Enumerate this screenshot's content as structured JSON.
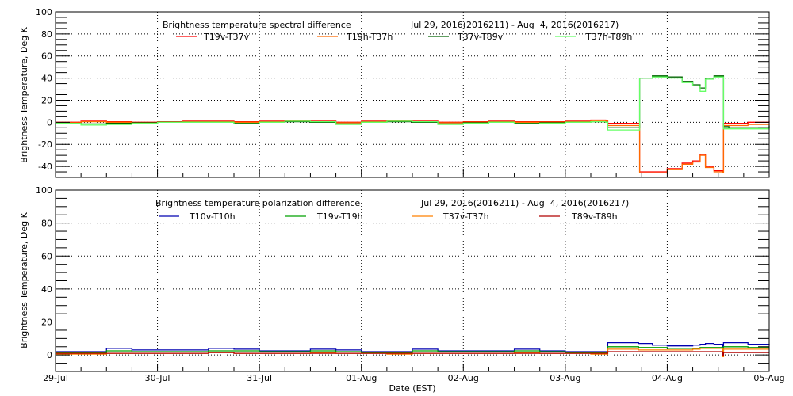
{
  "xlabel": "Date (EST)",
  "ylabel": "Brightness Temperature, Deg K",
  "xticks": [
    "29-Jul",
    "30-Jul",
    "31-Jul",
    "01-Aug",
    "02-Aug",
    "03-Aug",
    "04-Aug",
    "05-Aug"
  ],
  "chart_data": [
    {
      "type": "line",
      "title": "Brightness temperature spectral difference",
      "subtitle": "Jul 29, 2016(2016211) - Aug  4, 2016(2016217)",
      "ylabel": "Brightness Temperature, Deg K",
      "xlabel": "",
      "xlim": [
        "2016-07-29 00:00",
        "2016-08-05 00:00"
      ],
      "ylim": [
        -50,
        100
      ],
      "yticks": [
        -40,
        -20,
        0,
        20,
        40,
        60,
        80,
        100
      ],
      "grid": true,
      "legend": "top",
      "x": [
        "2016-07-29 00:00",
        "2016-07-29 06:00",
        "2016-07-29 12:00",
        "2016-07-29 18:00",
        "2016-07-30 00:00",
        "2016-07-30 06:00",
        "2016-07-30 12:00",
        "2016-07-30 18:00",
        "2016-07-31 00:00",
        "2016-07-31 06:00",
        "2016-07-31 12:00",
        "2016-07-31 18:00",
        "2016-08-01 00:00",
        "2016-08-01 06:00",
        "2016-08-01 12:00",
        "2016-08-01 18:00",
        "2016-08-02 00:00",
        "2016-08-02 06:00",
        "2016-08-02 12:00",
        "2016-08-02 18:00",
        "2016-08-03 00:00",
        "2016-08-03 06:00",
        "2016-08-03 09:30",
        "2016-08-03 10:00",
        "2016-08-03 14:30",
        "2016-08-03 17:15",
        "2016-08-03 17:30",
        "2016-08-03 20:30",
        "2016-08-04 00:00",
        "2016-08-04 03:30",
        "2016-08-04 06:00",
        "2016-08-04 07:45",
        "2016-08-04 09:00",
        "2016-08-04 11:00",
        "2016-08-04 13:00",
        "2016-08-04 13:15",
        "2016-08-04 14:30",
        "2016-08-04 19:00",
        "2016-08-05 00:00"
      ],
      "series": [
        {
          "name": "T19v-T37v",
          "color": "#ff0000",
          "values": [
            0,
            1,
            0.5,
            0,
            0.5,
            1,
            1,
            0.5,
            1,
            1.5,
            1,
            0,
            1,
            1.5,
            1,
            0,
            0.5,
            1,
            0.5,
            0.5,
            1,
            2,
            1.5,
            -1,
            -1,
            -1,
            -45,
            -45,
            -42,
            -37,
            -35,
            -29,
            -40,
            -44,
            -45,
            -1,
            -1,
            0,
            1
          ]
        },
        {
          "name": "T19h-T37h",
          "color": "#ff6a00",
          "values": [
            -0.5,
            0.5,
            0,
            -0.5,
            0,
            0.5,
            0.5,
            0,
            0.5,
            1,
            0.5,
            -0.5,
            0.5,
            1,
            0.5,
            -0.5,
            0,
            0.5,
            0,
            0,
            0.5,
            1.5,
            1,
            -3,
            -3,
            -3,
            -46,
            -46,
            -43,
            -38,
            -36,
            -30,
            -41,
            -45,
            -46,
            -3,
            -3,
            -2,
            -1
          ]
        },
        {
          "name": "T37v-T89v",
          "color": "#006400",
          "values": [
            -1,
            -1.5,
            -1,
            -0.5,
            0,
            0,
            0,
            -1,
            0,
            0.5,
            0,
            -1.5,
            0,
            0.5,
            0,
            -1.5,
            -0.5,
            0,
            -1,
            -0.5,
            0,
            0.5,
            0,
            -5,
            -5,
            -5,
            40,
            42,
            41,
            37,
            34,
            31,
            40,
            42,
            42,
            -4,
            -5,
            -5,
            -3
          ]
        },
        {
          "name": "T37h-T89h",
          "color": "#66ff66",
          "values": [
            -1,
            -2.5,
            -2,
            -1,
            0,
            0,
            0,
            -1.5,
            0,
            1,
            0.5,
            -2,
            0,
            1,
            0.5,
            -2,
            -1,
            0,
            -1.5,
            -1,
            0,
            0.5,
            0,
            -7,
            -7,
            -7,
            40,
            41,
            40,
            36,
            33,
            28,
            39,
            41,
            41,
            -6,
            -6,
            -6,
            -4
          ]
        }
      ]
    },
    {
      "type": "line",
      "title": "Brightness temperature polarization difference",
      "subtitle": "Jul 29, 2016(2016211) - Aug  4, 2016(2016217)",
      "ylabel": "Brightness Temperature, Deg K",
      "xlabel": "Date (EST)",
      "xlim": [
        "2016-07-29 00:00",
        "2016-08-05 00:00"
      ],
      "ylim": [
        -10,
        100
      ],
      "yticks": [
        0,
        20,
        40,
        60,
        80,
        100
      ],
      "grid": true,
      "legend": "top",
      "x": [
        "2016-07-29 00:00",
        "2016-07-29 06:00",
        "2016-07-29 12:00",
        "2016-07-29 18:00",
        "2016-07-30 00:00",
        "2016-07-30 06:00",
        "2016-07-30 12:00",
        "2016-07-30 18:00",
        "2016-07-31 00:00",
        "2016-07-31 06:00",
        "2016-07-31 12:00",
        "2016-07-31 18:00",
        "2016-08-01 00:00",
        "2016-08-01 06:00",
        "2016-08-01 12:00",
        "2016-08-01 18:00",
        "2016-08-02 00:00",
        "2016-08-02 06:00",
        "2016-08-02 12:00",
        "2016-08-02 18:00",
        "2016-08-03 00:00",
        "2016-08-03 06:00",
        "2016-08-03 09:30",
        "2016-08-03 10:00",
        "2016-08-03 14:30",
        "2016-08-03 17:15",
        "2016-08-03 17:30",
        "2016-08-03 20:30",
        "2016-08-04 00:00",
        "2016-08-04 03:30",
        "2016-08-04 06:00",
        "2016-08-04 07:45",
        "2016-08-04 09:00",
        "2016-08-04 11:00",
        "2016-08-04 13:00",
        "2016-08-04 13:15",
        "2016-08-04 14:30",
        "2016-08-04 19:00",
        "2016-08-05 00:00"
      ],
      "series": [
        {
          "name": "T10v-T10h",
          "color": "#0000b0",
          "values": [
            2,
            2,
            4,
            3,
            3,
            3,
            4,
            3.5,
            2.5,
            2.5,
            3.5,
            3,
            2,
            2,
            3.5,
            2.5,
            2.5,
            2.5,
            3.5,
            2.5,
            2,
            2,
            2,
            7.5,
            7.5,
            7,
            7,
            6,
            5.5,
            5.5,
            6,
            6.5,
            7,
            6.5,
            3,
            7.5,
            7.5,
            6.5,
            6
          ]
        },
        {
          "name": "T19v-T19h",
          "color": "#00a000",
          "values": [
            1.5,
            1.5,
            2.5,
            2,
            2,
            2,
            2.5,
            2.5,
            2,
            2,
            2.5,
            2,
            1.5,
            1.5,
            2.5,
            2,
            2,
            2,
            2.5,
            2,
            1.5,
            1.5,
            1.5,
            5,
            5,
            4.5,
            4.5,
            4.5,
            4,
            4,
            4,
            4.5,
            4.5,
            4.5,
            2,
            5,
            5,
            4.5,
            4.5
          ]
        },
        {
          "name": "T37v-T37h",
          "color": "#ff8000",
          "values": [
            0.5,
            0.5,
            1,
            1,
            1,
            1,
            1.5,
            1,
            1,
            1,
            1.5,
            1,
            1,
            0.5,
            1,
            1,
            1,
            1,
            1.5,
            1,
            1,
            0.5,
            0.5,
            3.5,
            3.5,
            3,
            3,
            3,
            3,
            3,
            3.5,
            4,
            4,
            4,
            -1,
            3.5,
            3.5,
            3.5,
            3.5
          ]
        },
        {
          "name": "T89v-T89h",
          "color": "#b00000",
          "values": [
            1,
            1,
            1,
            1,
            1,
            1,
            1.5,
            1,
            1,
            1,
            1,
            1,
            1,
            1,
            1,
            1,
            1,
            1,
            1,
            1,
            1,
            1,
            1,
            2,
            2,
            2,
            2,
            2,
            2,
            2,
            2,
            2,
            2,
            2,
            -0.5,
            1.5,
            1.5,
            1.5,
            1.5
          ]
        }
      ]
    }
  ]
}
